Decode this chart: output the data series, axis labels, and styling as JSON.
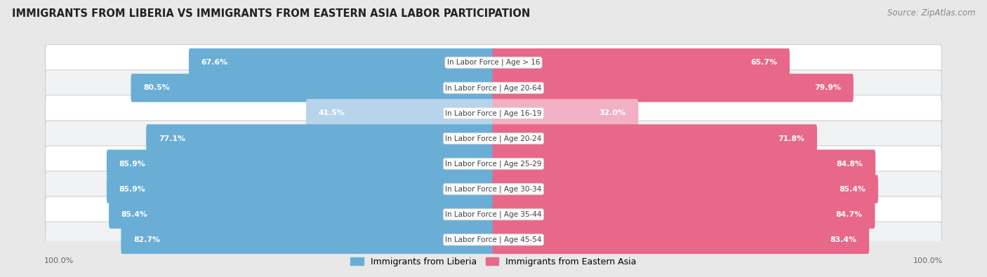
{
  "title": "IMMIGRANTS FROM LIBERIA VS IMMIGRANTS FROM EASTERN ASIA LABOR PARTICIPATION",
  "source": "Source: ZipAtlas.com",
  "categories": [
    "In Labor Force | Age > 16",
    "In Labor Force | Age 20-64",
    "In Labor Force | Age 16-19",
    "In Labor Force | Age 20-24",
    "In Labor Force | Age 25-29",
    "In Labor Force | Age 30-34",
    "In Labor Force | Age 35-44",
    "In Labor Force | Age 45-54"
  ],
  "liberia_values": [
    67.6,
    80.5,
    41.5,
    77.1,
    85.9,
    85.9,
    85.4,
    82.7
  ],
  "eastern_asia_values": [
    65.7,
    79.9,
    32.0,
    71.8,
    84.8,
    85.4,
    84.7,
    83.4
  ],
  "liberia_color": "#6aaed6",
  "liberia_color_light": "#b8d4ea",
  "eastern_asia_color": "#e8688a",
  "eastern_asia_color_light": "#f2b0c4",
  "background_color": "#e8e8e8",
  "row_bg_color": "#f5f5f5",
  "row_border_color": "#d0d0d0",
  "legend_liberia": "Immigrants from Liberia",
  "legend_eastern_asia": "Immigrants from Eastern Asia",
  "axis_label": "100.0%"
}
